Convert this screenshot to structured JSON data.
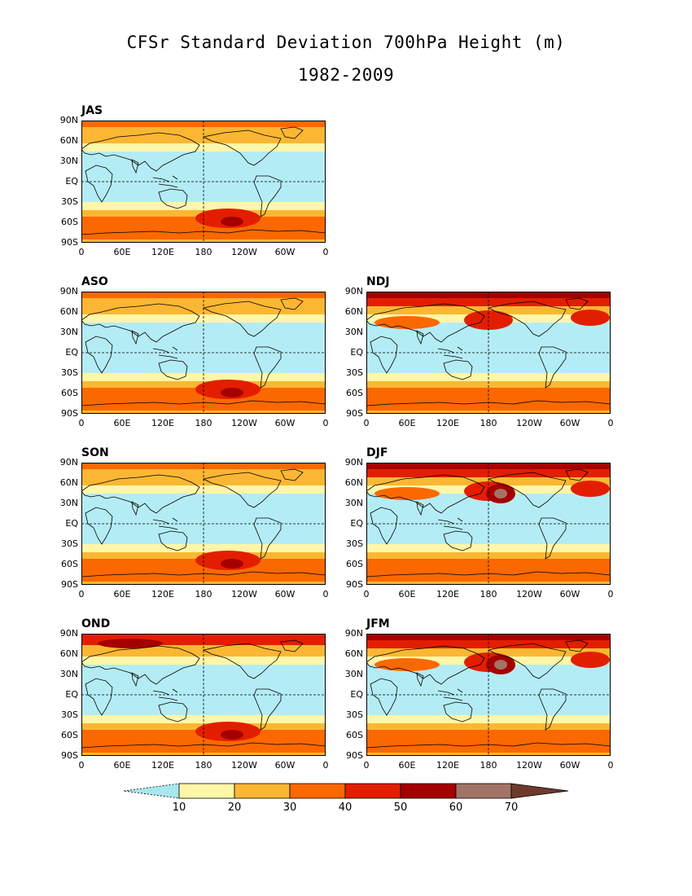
{
  "title": "CFSr Standard Deviation 700hPa Height (m)",
  "subtitle": "1982-2009",
  "x_ticks": [
    "0",
    "60E",
    "120E",
    "180",
    "120W",
    "60W",
    "0"
  ],
  "y_ticks": [
    "90N",
    "60N",
    "30N",
    "EQ",
    "30S",
    "60S",
    "90S"
  ],
  "panels": [
    {
      "label": "JAS",
      "slot": [
        0,
        0
      ]
    },
    {
      "label": "ASO",
      "slot": [
        1,
        0
      ]
    },
    {
      "label": "NDJ",
      "slot": [
        1,
        1
      ]
    },
    {
      "label": "SON",
      "slot": [
        2,
        0
      ]
    },
    {
      "label": "DJF",
      "slot": [
        2,
        1
      ]
    },
    {
      "label": "OND",
      "slot": [
        3,
        0
      ]
    },
    {
      "label": "JFM",
      "slot": [
        3,
        1
      ]
    }
  ],
  "colorbar": {
    "levels": [
      "10",
      "20",
      "30",
      "40",
      "50",
      "60",
      "70"
    ],
    "colors": [
      "#a8e6f0",
      "#fff6a8",
      "#fbb733",
      "#fb6800",
      "#e31e00",
      "#a50000",
      "#a27467",
      "#6e3a2b"
    ]
  },
  "colors": {
    "land_outline": "#000000",
    "tropics": "#b4ecf5",
    "low": "#fff6a8",
    "mid": "#fbb733",
    "high": "#fb6800",
    "higher": "#e31e00",
    "highest": "#a50000",
    "extreme": "#a27467"
  }
}
